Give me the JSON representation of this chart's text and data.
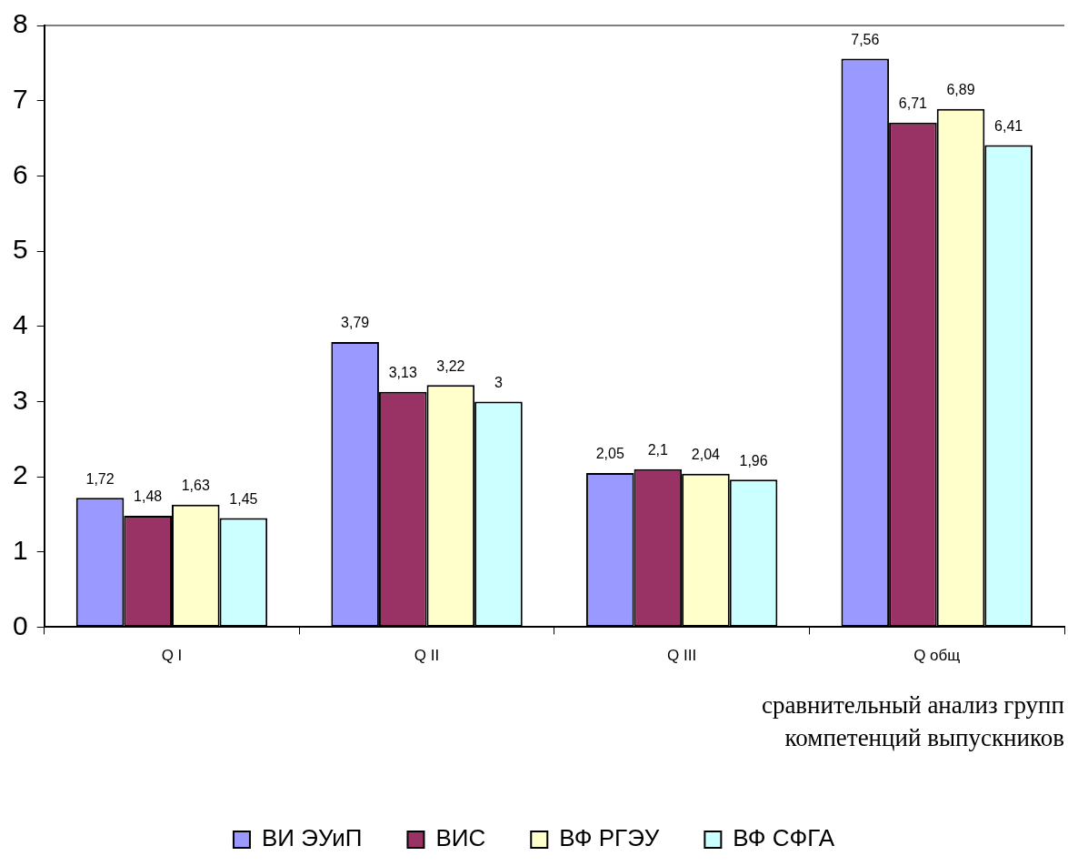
{
  "chart_data": {
    "type": "bar",
    "categories": [
      "Q I",
      "Q II",
      "Q III",
      "Q общ"
    ],
    "xlabel": [
      "сравнительный анализ групп",
      "компетенций выпускников"
    ],
    "series": [
      {
        "name": "ВИ ЭУиП",
        "color": "#9999ff",
        "values": [
          1.72,
          3.79,
          2.05,
          7.56
        ],
        "value_labels": [
          "1,72",
          "3,79",
          "2,05",
          "7,56"
        ]
      },
      {
        "name": "ВИС",
        "color": "#993366",
        "values": [
          1.48,
          3.13,
          2.1,
          6.71
        ],
        "value_labels": [
          "1,48",
          "3,13",
          "2,1",
          "6,71"
        ]
      },
      {
        "name": "ВФ РГЭУ",
        "color": "#ffffcc",
        "values": [
          1.63,
          3.22,
          2.04,
          6.89
        ],
        "value_labels": [
          "1,63",
          "3,22",
          "2,04",
          "6,89"
        ]
      },
      {
        "name": "ВФ СФГА",
        "color": "#ccffff",
        "values": [
          1.45,
          3,
          1.96,
          6.41
        ],
        "value_labels": [
          "1,45",
          "3",
          "1,96",
          "6,41"
        ]
      }
    ],
    "ylim": [
      0,
      8
    ],
    "yticks": [
      0,
      1,
      2,
      3,
      4,
      5,
      6,
      7,
      8
    ],
    "grid": false,
    "legend": "bottom"
  }
}
